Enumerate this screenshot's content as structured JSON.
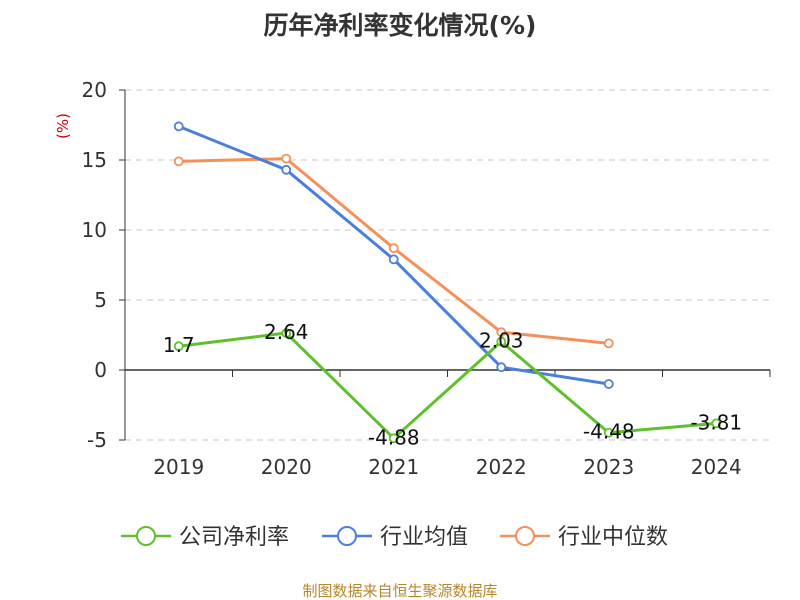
{
  "title": "历年净利率变化情况(%)",
  "source_text": "制图数据来自恒生聚源数据库",
  "chart_data": {
    "type": "line",
    "title": "历年净利率变化情况(%)",
    "ylabel": "(%)",
    "xlabel": "",
    "categories": [
      "2019",
      "2020",
      "2021",
      "2022",
      "2023",
      "2024"
    ],
    "ylim": [
      -5,
      20
    ],
    "yticks": [
      20,
      15,
      10,
      5,
      0,
      -5
    ],
    "grid": true,
    "legend_position": "bottom",
    "series": [
      {
        "name": "公司净利率",
        "color": "#5ec12b",
        "values": [
          1.7,
          2.64,
          -4.88,
          2.03,
          -4.48,
          -3.81
        ],
        "labels": [
          "1.7",
          "2.64",
          "-4.88",
          "2.03",
          "-4.48",
          "-3.81"
        ]
      },
      {
        "name": "行业均值",
        "color": "#4c7fdc",
        "values": [
          17.4,
          14.3,
          7.9,
          0.2,
          -1.0,
          null
        ]
      },
      {
        "name": "行业中位数",
        "color": "#f5905a",
        "values": [
          14.9,
          15.1,
          8.7,
          2.7,
          1.9,
          null
        ]
      }
    ]
  }
}
